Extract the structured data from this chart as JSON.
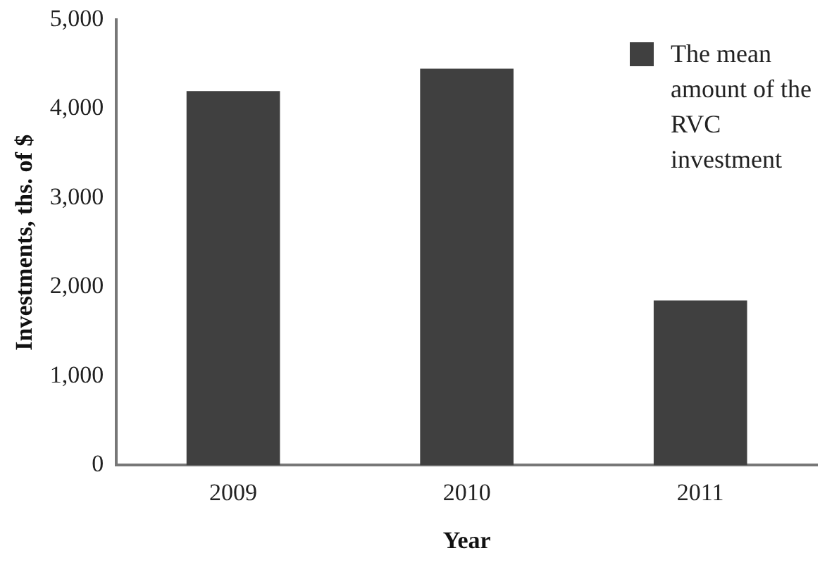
{
  "chart_data": {
    "type": "bar",
    "xlabel": "Year",
    "ylabel": "Investments, ths. of $",
    "categories": [
      "2009",
      "2010",
      "2011"
    ],
    "series": [
      {
        "name": "The mean amount of the RVC investment",
        "color": "#404040",
        "values": [
          4200,
          4450,
          1850
        ]
      }
    ],
    "ylim": [
      0,
      5000
    ],
    "yticks": [
      0,
      {
        "value": 1000,
        "label": "1,000"
      },
      {
        "value": 2000,
        "label": "2,000"
      },
      {
        "value": 3000,
        "label": "3,000"
      },
      {
        "value": 4000,
        "label": "4,000"
      },
      {
        "value": 5000,
        "label": "5,000"
      }
    ],
    "grid": false,
    "legend": "top right"
  }
}
